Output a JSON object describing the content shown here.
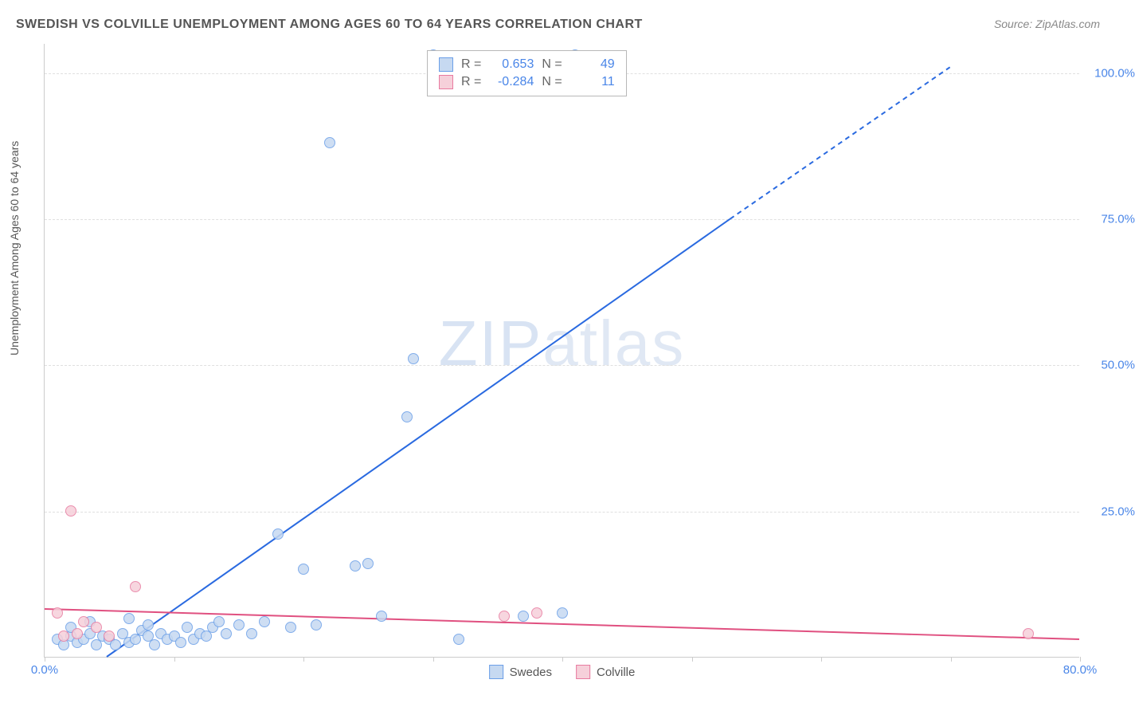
{
  "title": "SWEDISH VS COLVILLE UNEMPLOYMENT AMONG AGES 60 TO 64 YEARS CORRELATION CHART",
  "source": "Source: ZipAtlas.com",
  "y_axis_label": "Unemployment Among Ages 60 to 64 years",
  "watermark": "ZIPatlas",
  "chart": {
    "type": "scatter",
    "background_color": "#ffffff",
    "grid_color": "#e0e0e0",
    "axis_color": "#cccccc",
    "text_color": "#555555",
    "xlim": [
      0,
      80
    ],
    "ylim": [
      0,
      105
    ],
    "x_ticks": [
      0,
      10,
      20,
      30,
      40,
      50,
      60,
      70,
      80
    ],
    "x_tick_labels": {
      "0": "0.0%",
      "80": "80.0%"
    },
    "y_ticks": [
      25,
      50,
      75,
      100
    ],
    "y_tick_labels": {
      "25": "25.0%",
      "50": "50.0%",
      "75": "75.0%",
      "100": "100.0%"
    },
    "series": [
      {
        "name": "Swedes",
        "color_fill": "#c6d9f1",
        "color_stroke": "#6b9fe8",
        "marker_size": 14,
        "r_label": "R =",
        "r_value": "0.653",
        "n_label": "N =",
        "n_value": "49",
        "trend": {
          "x1": 4.8,
          "y1": 0,
          "x2": 53,
          "y2": 75,
          "extend_x2": 70,
          "extend_y2": 101,
          "color": "#2a6ae0",
          "width": 2
        },
        "points": [
          [
            1.0,
            3.0
          ],
          [
            1.5,
            2.0
          ],
          [
            2.0,
            3.5
          ],
          [
            2.5,
            2.5
          ],
          [
            3.0,
            3.0
          ],
          [
            3.5,
            4.0
          ],
          [
            4.0,
            2.0
          ],
          [
            4.5,
            3.5
          ],
          [
            5.0,
            3.0
          ],
          [
            5.5,
            2.0
          ],
          [
            6.0,
            4.0
          ],
          [
            6.5,
            2.5
          ],
          [
            7.0,
            3.0
          ],
          [
            7.5,
            4.5
          ],
          [
            8.0,
            3.5
          ],
          [
            8.5,
            2.0
          ],
          [
            9.0,
            4.0
          ],
          [
            9.5,
            3.0
          ],
          [
            10.0,
            3.5
          ],
          [
            10.5,
            2.5
          ],
          [
            11.0,
            5.0
          ],
          [
            11.5,
            3.0
          ],
          [
            12.0,
            4.0
          ],
          [
            12.5,
            3.5
          ],
          [
            13.0,
            5.0
          ],
          [
            14.0,
            4.0
          ],
          [
            15.0,
            5.5
          ],
          [
            16.0,
            4.0
          ],
          [
            17.0,
            6.0
          ],
          [
            18.0,
            21.0
          ],
          [
            19.0,
            5.0
          ],
          [
            20.0,
            15.0
          ],
          [
            21.0,
            5.5
          ],
          [
            22.0,
            88.0
          ],
          [
            24.0,
            15.5
          ],
          [
            25.0,
            16.0
          ],
          [
            26.0,
            7.0
          ],
          [
            28.0,
            41.0
          ],
          [
            28.5,
            51.0
          ],
          [
            30.0,
            103.0
          ],
          [
            32.0,
            3.0
          ],
          [
            37.0,
            7.0
          ],
          [
            40.0,
            7.5
          ],
          [
            41.0,
            103.0
          ],
          [
            2.0,
            5.0
          ],
          [
            3.5,
            6.0
          ],
          [
            6.5,
            6.5
          ],
          [
            8.0,
            5.5
          ],
          [
            13.5,
            6.0
          ]
        ]
      },
      {
        "name": "Colville",
        "color_fill": "#f6d0da",
        "color_stroke": "#e87ba0",
        "marker_size": 14,
        "r_label": "R =",
        "r_value": "-0.284",
        "n_label": "N =",
        "n_value": "11",
        "trend": {
          "x1": 0,
          "y1": 8.2,
          "x2": 80,
          "y2": 3.0,
          "color": "#e05080",
          "width": 2
        },
        "points": [
          [
            1.0,
            7.5
          ],
          [
            1.5,
            3.5
          ],
          [
            2.0,
            25.0
          ],
          [
            2.5,
            4.0
          ],
          [
            3.0,
            6.0
          ],
          [
            5.0,
            3.5
          ],
          [
            7.0,
            12.0
          ],
          [
            35.5,
            7.0
          ],
          [
            38.0,
            7.5
          ],
          [
            76.0,
            4.0
          ],
          [
            4.0,
            5.0
          ]
        ]
      }
    ],
    "stats_box": {
      "title_fontsize": 16
    },
    "legend_bottom": {
      "fontsize": 15
    }
  }
}
